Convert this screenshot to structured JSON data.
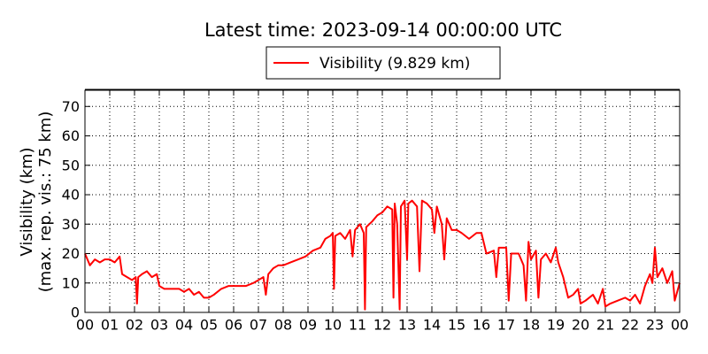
{
  "chart_data": {
    "type": "line",
    "title": "Latest time: 2023-09-14 00:00:00 UTC",
    "ylabel": [
      "Visibility (km)",
      "(max. rep. vis.: 75 km)"
    ],
    "legend": "upper center",
    "grid": true,
    "x": [
      0.0,
      0.2,
      0.4,
      0.6,
      0.8,
      1.0,
      1.2,
      1.4,
      1.5,
      1.7,
      1.9,
      2.05,
      2.1,
      2.15,
      2.3,
      2.5,
      2.7,
      2.9,
      3.0,
      3.2,
      3.5,
      3.8,
      4.0,
      4.2,
      4.4,
      4.6,
      4.8,
      5.0,
      5.2,
      5.5,
      5.8,
      6.2,
      6.5,
      6.8,
      7.0,
      7.2,
      7.3,
      7.4,
      7.6,
      7.8,
      8.0,
      8.3,
      8.6,
      8.9,
      9.2,
      9.5,
      9.7,
      9.9,
      10.0,
      10.05,
      10.1,
      10.3,
      10.5,
      10.7,
      10.8,
      10.9,
      11.1,
      11.25,
      11.3,
      11.35,
      11.6,
      11.8,
      12.0,
      12.2,
      12.4,
      12.45,
      12.5,
      12.6,
      12.7,
      12.75,
      12.9,
      13.0,
      13.05,
      13.2,
      13.4,
      13.5,
      13.6,
      13.8,
      14.0,
      14.1,
      14.2,
      14.4,
      14.5,
      14.6,
      14.8,
      15.0,
      15.2,
      15.5,
      15.8,
      16.0,
      16.2,
      16.5,
      16.6,
      16.7,
      17.0,
      17.1,
      17.2,
      17.5,
      17.7,
      17.8,
      17.9,
      18.0,
      18.2,
      18.3,
      18.4,
      18.6,
      18.8,
      19.0,
      19.1,
      19.3,
      19.5,
      19.7,
      19.9,
      20.0,
      20.2,
      20.5,
      20.7,
      20.9,
      21.0,
      21.2,
      21.5,
      21.8,
      22.0,
      22.2,
      22.4,
      22.6,
      22.8,
      22.9,
      23.0,
      23.1,
      23.3,
      23.5,
      23.7,
      23.8,
      24.0
    ],
    "series": [
      {
        "name": "Visibility (9.829 km)",
        "color": "#ff0000",
        "values": [
          20,
          16,
          18,
          17,
          18,
          18,
          17,
          19,
          13,
          12,
          11,
          12,
          3,
          12,
          13,
          14,
          12,
          13,
          9,
          8,
          8,
          8,
          7,
          8,
          6,
          7,
          5,
          5,
          6,
          8,
          9,
          9,
          9,
          10,
          11,
          12,
          6,
          13,
          15,
          16,
          16,
          17,
          18,
          19,
          21,
          22,
          25,
          26,
          27,
          8,
          26,
          27,
          25,
          28,
          19,
          28,
          30,
          27,
          1,
          29,
          31,
          33,
          34,
          36,
          35,
          5,
          37,
          30,
          1,
          36,
          38,
          18,
          37,
          38,
          36,
          14,
          38,
          37,
          35,
          27,
          36,
          30,
          18,
          32,
          28,
          28,
          27,
          25,
          27,
          27,
          20,
          21,
          12,
          22,
          22,
          4,
          20,
          20,
          16,
          4,
          24,
          18,
          21,
          5,
          18,
          20,
          17,
          22,
          17,
          12,
          5,
          6,
          8,
          3,
          4,
          6,
          3,
          8,
          2,
          3,
          4,
          5,
          4,
          6,
          3,
          9,
          13,
          10,
          22,
          12,
          15,
          10,
          14,
          4,
          10
        ]
      }
    ],
    "xlim": [
      0,
      24
    ],
    "xticks": [
      {
        "value": 0,
        "label": "00"
      },
      {
        "value": 1,
        "label": "01"
      },
      {
        "value": 2,
        "label": "02"
      },
      {
        "value": 3,
        "label": "03"
      },
      {
        "value": 4,
        "label": "04"
      },
      {
        "value": 5,
        "label": "05"
      },
      {
        "value": 6,
        "label": "06"
      },
      {
        "value": 7,
        "label": "07"
      },
      {
        "value": 8,
        "label": "08"
      },
      {
        "value": 9,
        "label": "09"
      },
      {
        "value": 10,
        "label": "10"
      },
      {
        "value": 11,
        "label": "11"
      },
      {
        "value": 12,
        "label": "12"
      },
      {
        "value": 13,
        "label": "13"
      },
      {
        "value": 14,
        "label": "14"
      },
      {
        "value": 15,
        "label": "15"
      },
      {
        "value": 16,
        "label": "16"
      },
      {
        "value": 17,
        "label": "17"
      },
      {
        "value": 18,
        "label": "18"
      },
      {
        "value": 19,
        "label": "19"
      },
      {
        "value": 20,
        "label": "20"
      },
      {
        "value": 21,
        "label": "21"
      },
      {
        "value": 22,
        "label": "22"
      },
      {
        "value": 23,
        "label": "23"
      },
      {
        "value": 24,
        "label": "00"
      }
    ],
    "ylim": [
      0,
      75.5
    ],
    "yticks": [
      0,
      10,
      20,
      30,
      40,
      50,
      60,
      70
    ]
  }
}
